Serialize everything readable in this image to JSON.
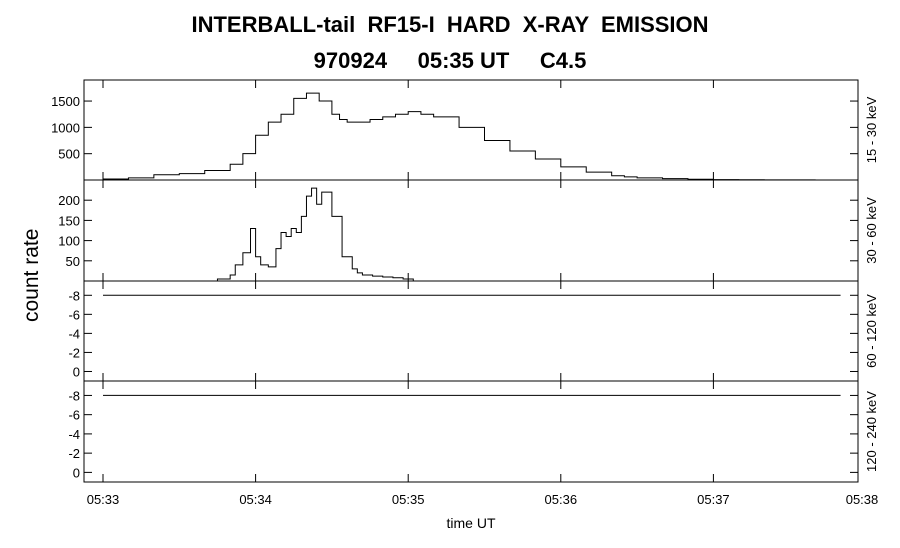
{
  "chart_data": {
    "type": "line",
    "title": "INTERBALL-tail  RF15-I  HARD  X-RAY  EMISSION",
    "subtitle": "970924     05:35 UT     C4.5",
    "ylabel": "count rate",
    "xlabel": "time UT",
    "x_ticks": [
      "05:33",
      "05:34",
      "05:35",
      "05:36",
      "05:37",
      "05:38"
    ],
    "xlim": [
      0,
      300
    ],
    "panels": [
      {
        "label": "15 - 30 keV",
        "ylim": [
          0,
          1900
        ],
        "y_ticks": [
          500,
          1000,
          1500
        ],
        "x": [
          0,
          10,
          20,
          30,
          40,
          50,
          55,
          60,
          65,
          70,
          75,
          80,
          85,
          90,
          93,
          96,
          100,
          105,
          110,
          115,
          120,
          125,
          130,
          140,
          150,
          160,
          170,
          180,
          190,
          200,
          205,
          210,
          220,
          230,
          240,
          250,
          260,
          270,
          280,
          290,
          300
        ],
        "values": [
          20,
          40,
          100,
          120,
          180,
          300,
          500,
          850,
          1100,
          1250,
          1550,
          1650,
          1500,
          1250,
          1150,
          1100,
          1100,
          1150,
          1200,
          1250,
          1300,
          1250,
          1200,
          1000,
          750,
          550,
          400,
          250,
          150,
          80,
          60,
          40,
          25,
          15,
          8,
          5,
          3,
          2,
          1,
          0,
          0
        ]
      },
      {
        "label": "30 - 60 keV",
        "ylim": [
          0,
          250
        ],
        "y_ticks": [
          50,
          100,
          150,
          200
        ],
        "x": [
          0,
          40,
          45,
          50,
          52,
          55,
          58,
          60,
          62,
          65,
          68,
          70,
          72,
          74,
          76,
          78,
          80,
          82,
          84,
          86,
          90,
          94,
          98,
          100,
          102,
          106,
          110,
          114,
          118,
          122,
          300
        ],
        "values": [
          0,
          0,
          5,
          15,
          40,
          70,
          130,
          60,
          40,
          35,
          80,
          120,
          110,
          130,
          120,
          160,
          210,
          230,
          190,
          220,
          160,
          60,
          30,
          20,
          15,
          12,
          10,
          8,
          5,
          0,
          0
        ]
      },
      {
        "label": "60 - 120 keV",
        "ylim": [
          1,
          -9.5
        ],
        "y_ticks": [
          -8,
          -6,
          -4,
          -2,
          0
        ],
        "x": [
          0,
          290
        ],
        "values": [
          -8,
          -8
        ]
      },
      {
        "label": "120 - 240 keV",
        "ylim": [
          1,
          -9.5
        ],
        "y_ticks": [
          -8,
          -6,
          -4,
          -2,
          0
        ],
        "x": [
          0,
          290
        ],
        "values": [
          -8,
          -8
        ]
      }
    ]
  }
}
